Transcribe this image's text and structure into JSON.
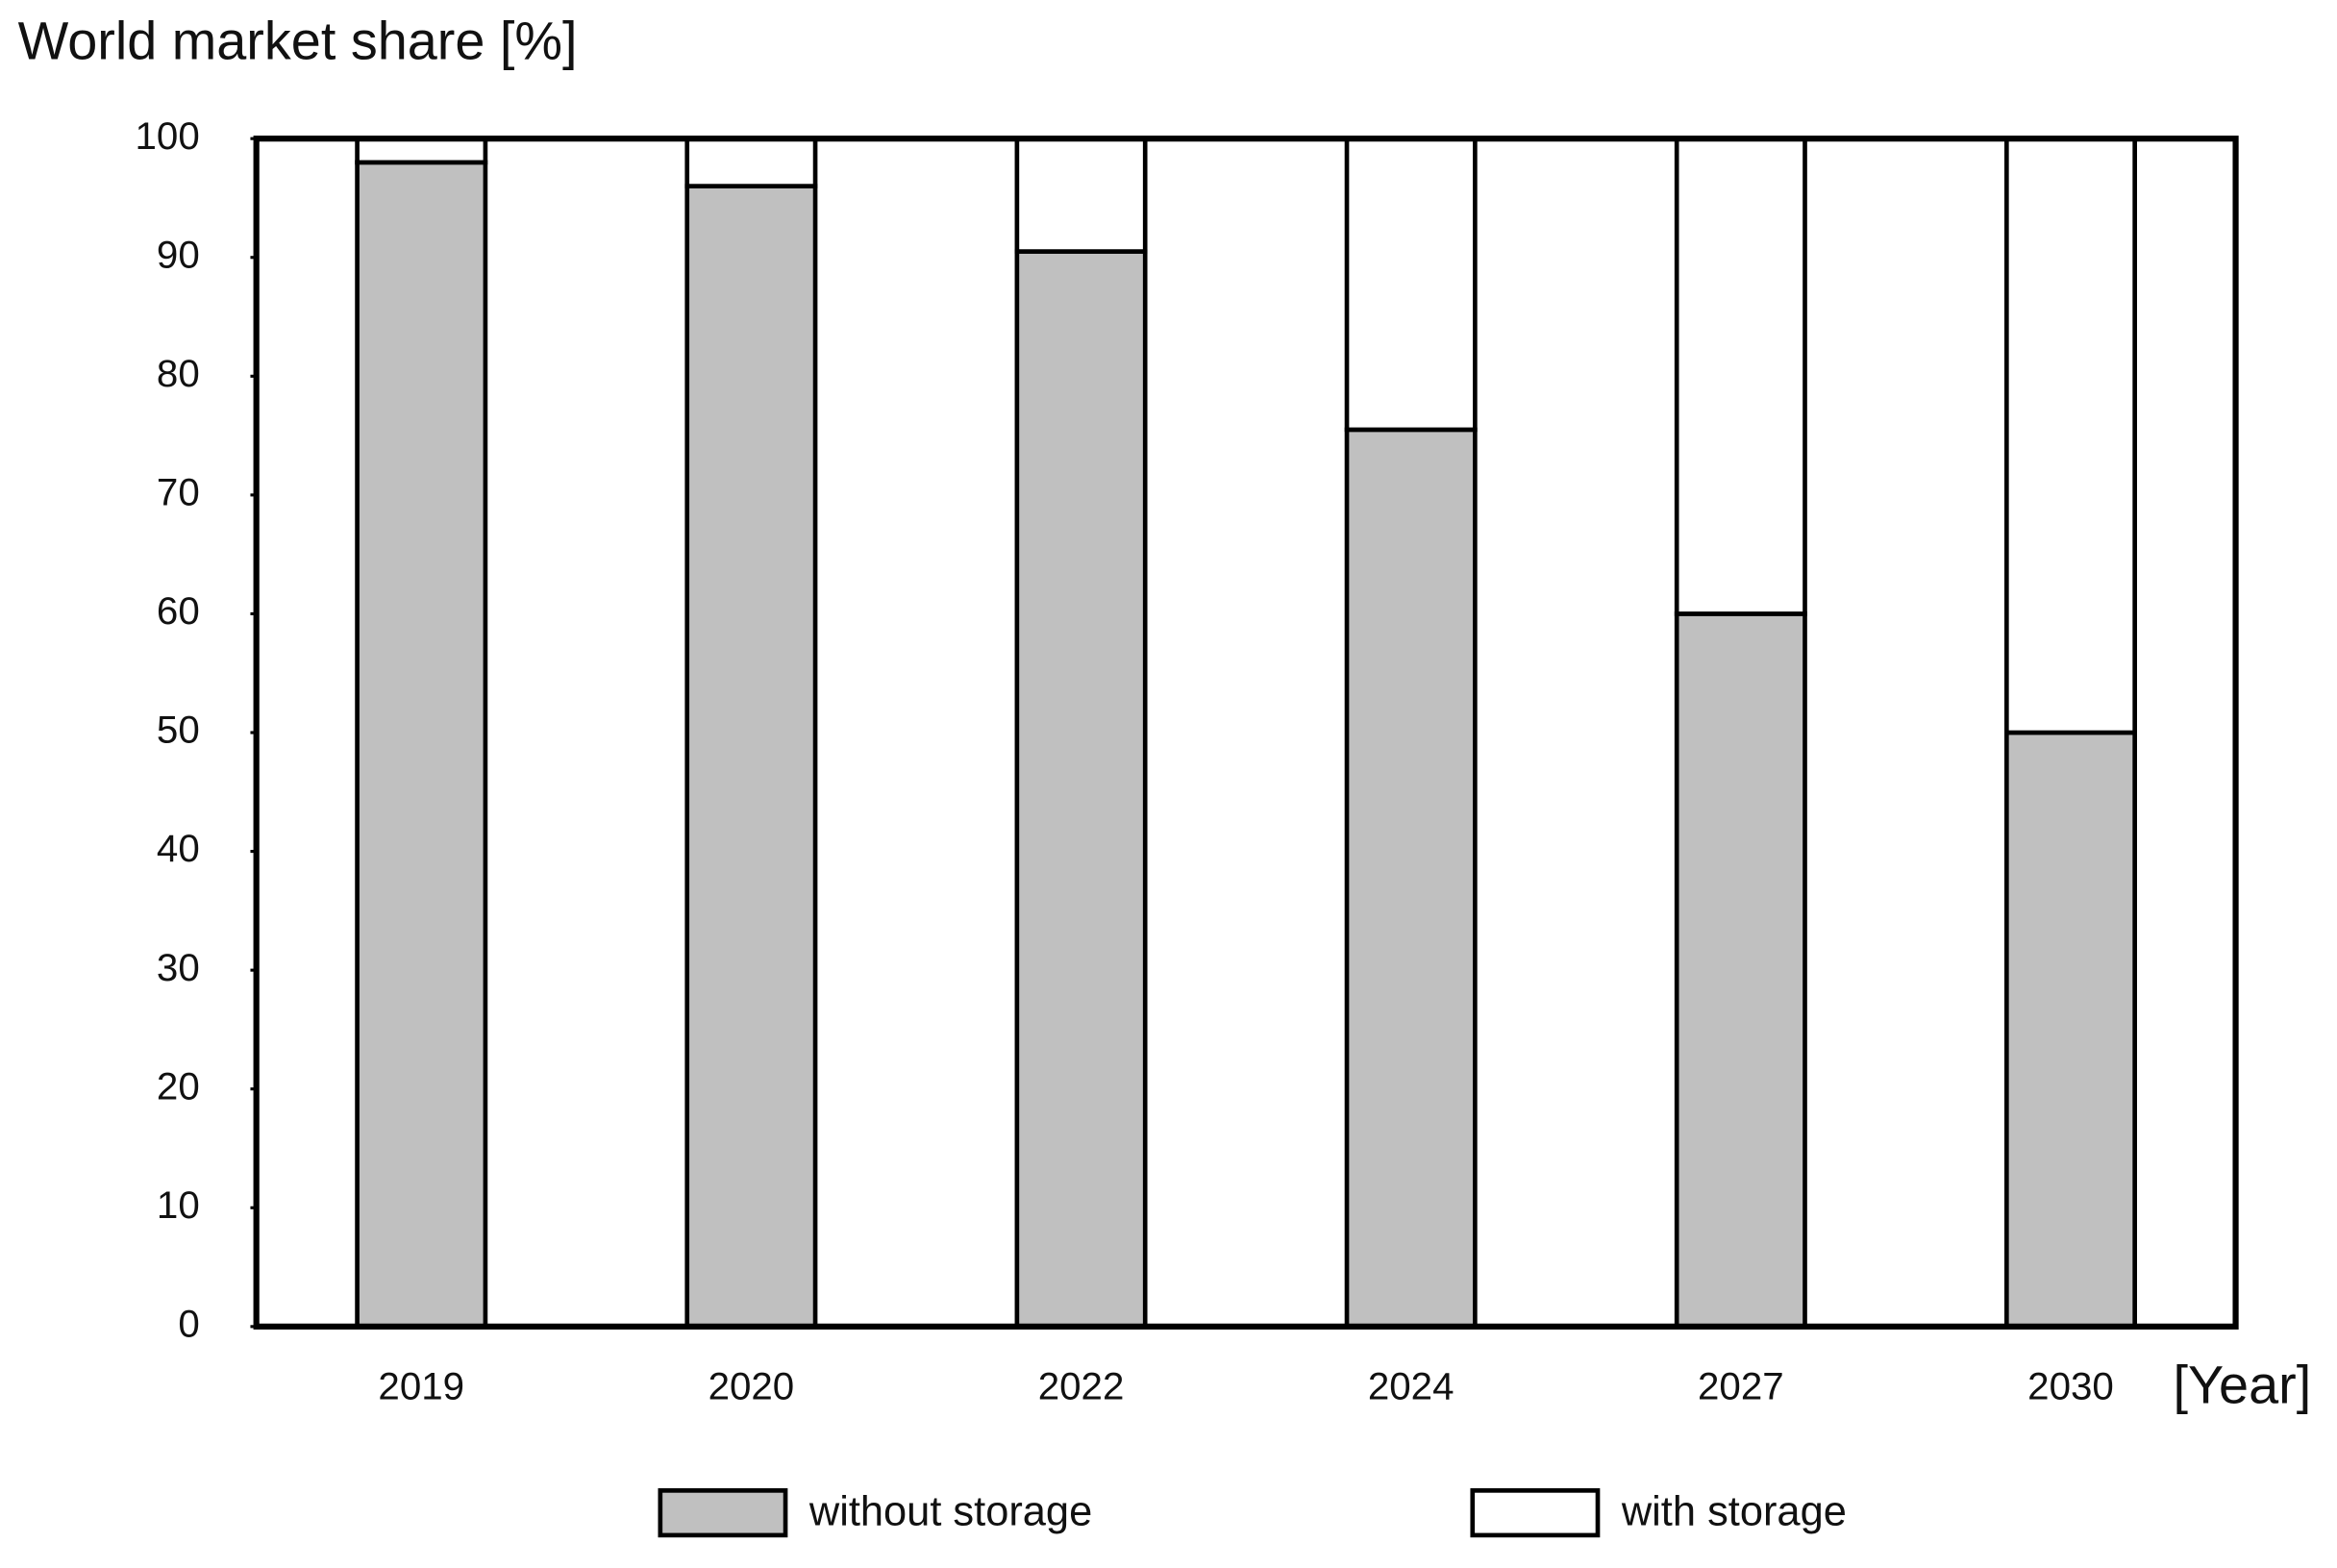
{
  "chart_data": {
    "type": "bar",
    "stacked": true,
    "y_label": "World market share [%]",
    "x_label": "[Year]",
    "categories": [
      "2019",
      "2020",
      "2022",
      "2024",
      "2027",
      "2030"
    ],
    "series": [
      {
        "name": "without storage",
        "color": "#c0c0c0",
        "values": [
          98,
          96,
          90.5,
          75.5,
          60,
          50
        ]
      },
      {
        "name": "with storage",
        "color": "#ffffff",
        "values": [
          2,
          4,
          9.5,
          24.5,
          40,
          50
        ]
      }
    ],
    "ylim": [
      0,
      100
    ],
    "yticks": [
      0,
      10,
      20,
      30,
      40,
      50,
      60,
      70,
      80,
      90,
      100
    ],
    "grid": false,
    "legend": "bottom"
  }
}
